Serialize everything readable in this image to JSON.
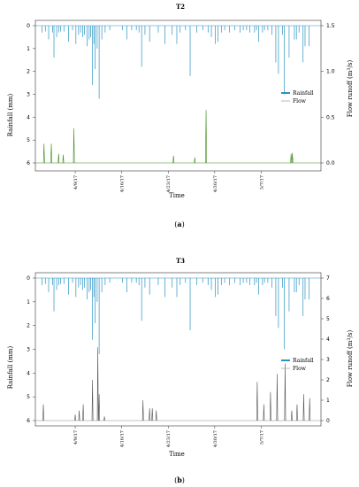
{
  "colors": {
    "rainfall": "#2a93c2",
    "flow_T2": "#3d8b1c",
    "flow_T3": "#555555",
    "frame": "#333333",
    "baseline": "#3d8b1c"
  },
  "chart_data": [
    {
      "type": "bar",
      "title": "T2",
      "xlabel": "Time",
      "ylabel_left": "Rainfall (mm)",
      "ylabel_right": "Flow runoff (m",
      "ylabel_right_sup": "3",
      "ylabel_right_tail": "/s)",
      "caption_open": "(",
      "caption_letter": "a",
      "caption_close": ")",
      "legend": [
        {
          "name": "Rainfall"
        },
        {
          "name": "Flow"
        }
      ],
      "legend_placement": "right",
      "x_ticks": [
        "4/9/17",
        "4/16/17",
        "4/23/17",
        "4/30/17",
        "5/7/17"
      ],
      "x_tick_days": [
        7,
        14,
        21,
        28,
        35
      ],
      "xlim_days": [
        1,
        44
      ],
      "rain_ylim": [
        0,
        6
      ],
      "rain_ticks": [
        0,
        1,
        2,
        3,
        4,
        5,
        6
      ],
      "flow_ylim": [
        0,
        1.5
      ],
      "flow_ticks": [
        0.0,
        0.5,
        1.0,
        1.5
      ],
      "flow_tick_labels": [
        "0.0",
        "0.5",
        "1.0",
        "1.5"
      ],
      "rainfall": {
        "day": [
          2.0,
          2.5,
          3.0,
          3.6,
          3.8,
          4.2,
          4.5,
          4.8,
          5.3,
          6.0,
          6.6,
          7.1,
          7.5,
          7.8,
          8.1,
          8.4,
          8.8,
          9.1,
          9.3,
          9.6,
          9.8,
          10.0,
          10.3,
          10.6,
          11.0,
          11.5,
          12.2,
          14.1,
          14.8,
          15.5,
          16.2,
          16.6,
          17.0,
          17.5,
          18.2,
          19.5,
          20.5,
          21.6,
          22.3,
          22.8,
          23.6,
          24.3,
          25.3,
          26.2,
          27.0,
          27.5,
          28.1,
          28.5,
          29.0,
          29.5,
          30.2,
          31.0,
          31.8,
          32.3,
          32.8,
          33.3,
          34.0,
          34.3,
          34.6,
          35.2,
          35.5,
          36.0,
          36.6,
          37.2,
          37.6,
          38.2,
          38.5,
          39.2,
          40.0,
          40.3,
          40.7,
          41.3,
          41.6,
          42.2
        ],
        "mm": [
          0.3,
          0.25,
          0.6,
          0.3,
          1.4,
          0.5,
          0.3,
          0.25,
          0.25,
          0.7,
          0.2,
          0.8,
          0.4,
          0.3,
          0.5,
          0.4,
          0.9,
          0.6,
          0.5,
          2.6,
          0.8,
          1.9,
          1.0,
          3.2,
          0.6,
          0.3,
          0.2,
          0.2,
          0.6,
          0.2,
          0.2,
          0.3,
          1.8,
          0.4,
          0.7,
          0.3,
          0.8,
          0.4,
          0.8,
          0.3,
          0.2,
          2.2,
          0.3,
          0.2,
          0.3,
          0.5,
          0.8,
          0.7,
          0.3,
          0.2,
          0.3,
          0.2,
          0.3,
          0.2,
          0.2,
          0.3,
          0.3,
          0.2,
          0.7,
          0.3,
          0.2,
          0.2,
          0.4,
          1.6,
          2.1,
          0.4,
          3.0,
          1.4,
          0.6,
          0.6,
          0.3,
          1.6,
          0.9,
          0.9
        ]
      },
      "flow": {
        "day": [
          2.3,
          3.4,
          4.5,
          5.2,
          6.8,
          21.8,
          25.0,
          26.7,
          39.5,
          39.7
        ],
        "m3s": [
          0.21,
          0.21,
          0.1,
          0.09,
          0.38,
          0.08,
          0.06,
          0.58,
          0.1,
          0.11
        ]
      }
    },
    {
      "type": "bar",
      "title": "T3",
      "xlabel": "Time",
      "ylabel_left": "Rainfall (mm)",
      "ylabel_right": "Flow runoff (m",
      "ylabel_right_sup": "3",
      "ylabel_right_tail": "/s)",
      "caption_open": "(",
      "caption_letter": "b",
      "caption_close": ")",
      "legend": [
        {
          "name": "Rainfall"
        },
        {
          "name": "Flow"
        }
      ],
      "legend_placement": "right",
      "x_ticks": [
        "4/9/17",
        "4/16/17",
        "4/23/17",
        "4/30/17",
        "5/7/17"
      ],
      "x_tick_days": [
        7,
        14,
        21,
        28,
        35
      ],
      "xlim_days": [
        1,
        44
      ],
      "rain_ylim": [
        0,
        6
      ],
      "rain_ticks": [
        0,
        1,
        2,
        3,
        4,
        5,
        6
      ],
      "flow_ylim": [
        0,
        7
      ],
      "flow_ticks": [
        0,
        1,
        2,
        3,
        4,
        5,
        6,
        7
      ],
      "flow_tick_labels": [
        "0",
        "1",
        "2",
        "3",
        "4",
        "5",
        "6",
        "7"
      ],
      "rainfall": {
        "day": [
          2.0,
          2.5,
          3.0,
          3.6,
          3.8,
          4.2,
          4.5,
          4.8,
          5.3,
          6.0,
          6.6,
          7.1,
          7.5,
          7.8,
          8.1,
          8.4,
          8.8,
          9.1,
          9.3,
          9.6,
          9.8,
          10.0,
          10.3,
          10.6,
          11.0,
          11.5,
          12.2,
          14.1,
          14.8,
          15.5,
          16.2,
          16.6,
          17.0,
          17.5,
          18.2,
          19.5,
          20.5,
          21.6,
          22.3,
          22.8,
          23.6,
          24.3,
          25.3,
          26.2,
          27.0,
          27.5,
          28.1,
          28.5,
          29.0,
          29.5,
          30.2,
          31.0,
          31.8,
          32.3,
          32.8,
          33.3,
          34.0,
          34.3,
          34.6,
          35.2,
          35.5,
          36.0,
          36.6,
          37.2,
          37.6,
          38.2,
          38.5,
          39.2,
          40.0,
          40.3,
          40.7,
          41.3,
          41.6,
          42.2
        ],
        "mm": [
          0.3,
          0.25,
          0.6,
          0.3,
          1.4,
          0.5,
          0.3,
          0.25,
          0.25,
          0.7,
          0.2,
          0.8,
          0.4,
          0.3,
          0.5,
          0.4,
          0.9,
          0.6,
          0.5,
          2.6,
          0.8,
          1.9,
          1.0,
          3.2,
          0.6,
          0.3,
          0.2,
          0.2,
          0.6,
          0.2,
          0.2,
          0.3,
          1.8,
          0.4,
          0.7,
          0.3,
          0.8,
          0.4,
          0.8,
          0.3,
          0.2,
          2.2,
          0.3,
          0.2,
          0.3,
          0.5,
          0.8,
          0.7,
          0.3,
          0.2,
          0.3,
          0.2,
          0.3,
          0.2,
          0.2,
          0.3,
          0.3,
          0.2,
          0.7,
          0.3,
          0.2,
          0.2,
          0.4,
          1.6,
          2.1,
          0.4,
          3.0,
          1.4,
          0.6,
          0.6,
          0.3,
          1.6,
          0.9,
          0.9
        ]
      },
      "flow": {
        "day": [
          2.2,
          7.0,
          7.6,
          8.2,
          9.6,
          10.4,
          10.6,
          11.4,
          17.2,
          18.2,
          18.6,
          19.2,
          34.4,
          35.4,
          36.4,
          37.4,
          38.6,
          39.6,
          40.4,
          41.4,
          42.3
        ],
        "m3s": [
          0.8,
          0.3,
          0.5,
          0.8,
          2.0,
          3.6,
          1.3,
          0.2,
          1.0,
          0.6,
          0.6,
          0.5,
          1.9,
          0.8,
          1.4,
          2.3,
          2.8,
          0.5,
          0.8,
          1.3,
          1.1
        ]
      }
    }
  ]
}
